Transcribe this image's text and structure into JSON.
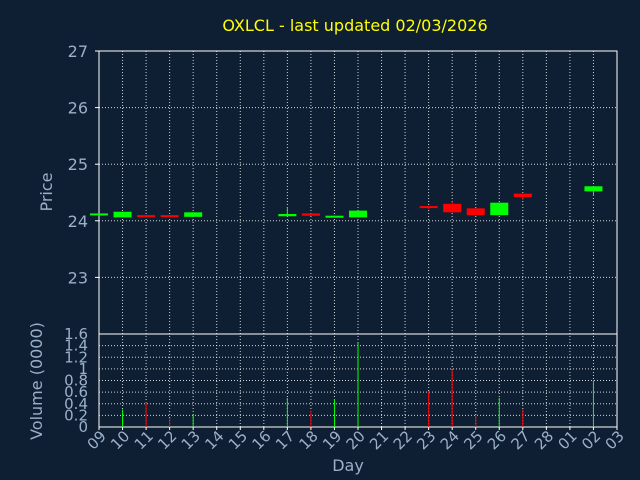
{
  "chart_data": [
    {
      "type": "candlestick",
      "title": "OXLCL - last updated 02/03/2026",
      "ylabel": "Price",
      "ylim": [
        22.0,
        27.0
      ],
      "yticks": [
        "23",
        "24",
        "25",
        "26",
        "27"
      ],
      "grid": true,
      "colors": {
        "up": "#00ff00",
        "down": "#ff0000",
        "background": "#0f1f33",
        "grid": "#ffffff",
        "title": "#ffff00",
        "tick": "#9ab0c8"
      },
      "candles": [
        {
          "day": "09",
          "open": 24.13,
          "close": 24.13,
          "high": 24.13,
          "low": 24.13
        },
        {
          "day": "10",
          "open": 24.06,
          "close": 24.16,
          "high": 24.16,
          "low": 24.06
        },
        {
          "day": "11",
          "open": 24.1,
          "close": 24.08,
          "high": 24.1,
          "low": 24.08
        },
        {
          "day": "12",
          "open": 24.1,
          "close": 24.08,
          "high": 24.1,
          "low": 24.08
        },
        {
          "day": "13",
          "open": 24.07,
          "close": 24.15,
          "high": 24.15,
          "low": 24.07
        },
        {
          "day": "17",
          "open": 24.08,
          "close": 24.12,
          "high": 24.24,
          "low": 24.08
        },
        {
          "day": "18",
          "open": 24.13,
          "close": 24.09,
          "high": 24.13,
          "low": 24.09
        },
        {
          "day": "19",
          "open": 24.06,
          "close": 24.09,
          "high": 24.09,
          "low": 24.06
        },
        {
          "day": "20",
          "open": 24.06,
          "close": 24.18,
          "high": 24.18,
          "low": 24.06
        },
        {
          "day": "23",
          "open": 24.26,
          "close": 24.24,
          "high": 24.26,
          "low": 24.21
        },
        {
          "day": "24",
          "open": 24.3,
          "close": 24.15,
          "high": 24.34,
          "low": 24.15
        },
        {
          "day": "25",
          "open": 24.22,
          "close": 24.1,
          "high": 24.22,
          "low": 24.1
        },
        {
          "day": "26",
          "open": 24.1,
          "close": 24.32,
          "high": 24.32,
          "low": 24.1
        },
        {
          "day": "27",
          "open": 24.48,
          "close": 24.42,
          "high": 24.48,
          "low": 24.37
        },
        {
          "day": "02",
          "open": 24.52,
          "close": 24.61,
          "high": 24.61,
          "low": 24.44
        }
      ]
    },
    {
      "type": "bar",
      "ylabel": "Volume (0000)",
      "xlabel": "Day",
      "ylim": [
        0,
        1.6
      ],
      "yticks": [
        "0",
        "0.2",
        "0.4",
        "0.6",
        "0.8",
        "1",
        "1.2",
        "1.4",
        "1.6"
      ],
      "categories": [
        "09",
        "10",
        "11",
        "12",
        "13",
        "14",
        "15",
        "16",
        "17",
        "18",
        "19",
        "20",
        "21",
        "22",
        "23",
        "24",
        "25",
        "26",
        "27",
        "28",
        "01",
        "02",
        "03"
      ],
      "volumes": [
        {
          "day": "10",
          "value": 0.3,
          "color": "#00ff00"
        },
        {
          "day": "11",
          "value": 0.42,
          "color": "#ff0000"
        },
        {
          "day": "12",
          "value": 0.15,
          "color": "#ff0000"
        },
        {
          "day": "13",
          "value": 0.22,
          "color": "#00ff00"
        },
        {
          "day": "17",
          "value": 0.5,
          "color": "#00ff00"
        },
        {
          "day": "18",
          "value": 0.28,
          "color": "#ff0000"
        },
        {
          "day": "19",
          "value": 0.48,
          "color": "#00ff00"
        },
        {
          "day": "20",
          "value": 1.45,
          "color": "#00ff00"
        },
        {
          "day": "23",
          "value": 0.62,
          "color": "#ff0000"
        },
        {
          "day": "24",
          "value": 0.98,
          "color": "#ff0000"
        },
        {
          "day": "25",
          "value": 0.2,
          "color": "#ff0000"
        },
        {
          "day": "26",
          "value": 0.5,
          "color": "#00ff00"
        },
        {
          "day": "27",
          "value": 0.3,
          "color": "#ff0000"
        },
        {
          "day": "02",
          "value": 0.8,
          "color": "#00ff00"
        }
      ]
    }
  ]
}
